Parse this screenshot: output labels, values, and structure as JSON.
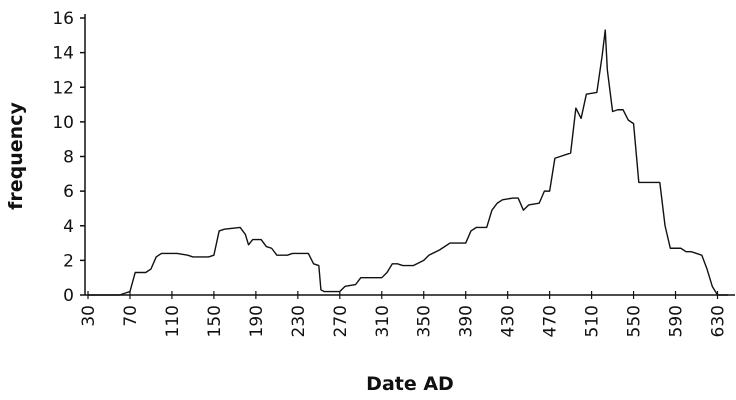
{
  "chart_data": {
    "type": "line",
    "x_label": "Date AD",
    "y_label": "frequency",
    "x": [
      30,
      60,
      65,
      70,
      75,
      85,
      90,
      95,
      100,
      115,
      125,
      130,
      145,
      150,
      155,
      160,
      175,
      180,
      183,
      187,
      195,
      200,
      205,
      210,
      220,
      225,
      240,
      245,
      250,
      252,
      255,
      270,
      275,
      285,
      290,
      305,
      310,
      315,
      320,
      325,
      330,
      340,
      350,
      355,
      365,
      375,
      385,
      390,
      395,
      400,
      410,
      415,
      420,
      425,
      435,
      440,
      445,
      450,
      460,
      465,
      470,
      475,
      480,
      490,
      495,
      500,
      505,
      515,
      520,
      523,
      525,
      530,
      535,
      540,
      545,
      550,
      555,
      570,
      575,
      580,
      585,
      595,
      600,
      605,
      615,
      620,
      625,
      630,
      640
    ],
    "series": [
      {
        "color": "#111111",
        "values": [
          0,
          0,
          0.1,
          0.2,
          1.3,
          1.3,
          1.5,
          2.2,
          2.4,
          2.4,
          2.3,
          2.2,
          2.2,
          2.3,
          3.7,
          3.8,
          3.9,
          3.5,
          2.9,
          3.2,
          3.2,
          2.8,
          2.7,
          2.3,
          2.3,
          2.4,
          2.4,
          1.8,
          1.7,
          0.3,
          0.2,
          0.2,
          0.5,
          0.6,
          1.0,
          1.0,
          1.0,
          1.3,
          1.8,
          1.8,
          1.7,
          1.7,
          2.0,
          2.3,
          2.6,
          3.0,
          3.0,
          3.0,
          3.7,
          3.9,
          3.9,
          4.9,
          5.3,
          5.5,
          5.6,
          5.6,
          4.9,
          5.2,
          5.3,
          6.0,
          6.0,
          7.9,
          8.0,
          8.2,
          10.8,
          10.2,
          11.6,
          11.7,
          13.8,
          15.3,
          13.0,
          10.6,
          10.7,
          10.7,
          10.1,
          9.9,
          6.5,
          6.5,
          6.5,
          4.0,
          2.7,
          2.7,
          2.5,
          2.5,
          2.3,
          1.5,
          0.5,
          0,
          0
        ]
      }
    ],
    "xlim": [
      30,
      640
    ],
    "ylim": [
      0,
      16
    ],
    "xticks": [
      30,
      70,
      110,
      150,
      190,
      230,
      270,
      310,
      350,
      390,
      430,
      470,
      510,
      550,
      590,
      630
    ],
    "yticks": [
      0,
      2,
      4,
      6,
      8,
      10,
      12,
      14,
      16
    ]
  }
}
